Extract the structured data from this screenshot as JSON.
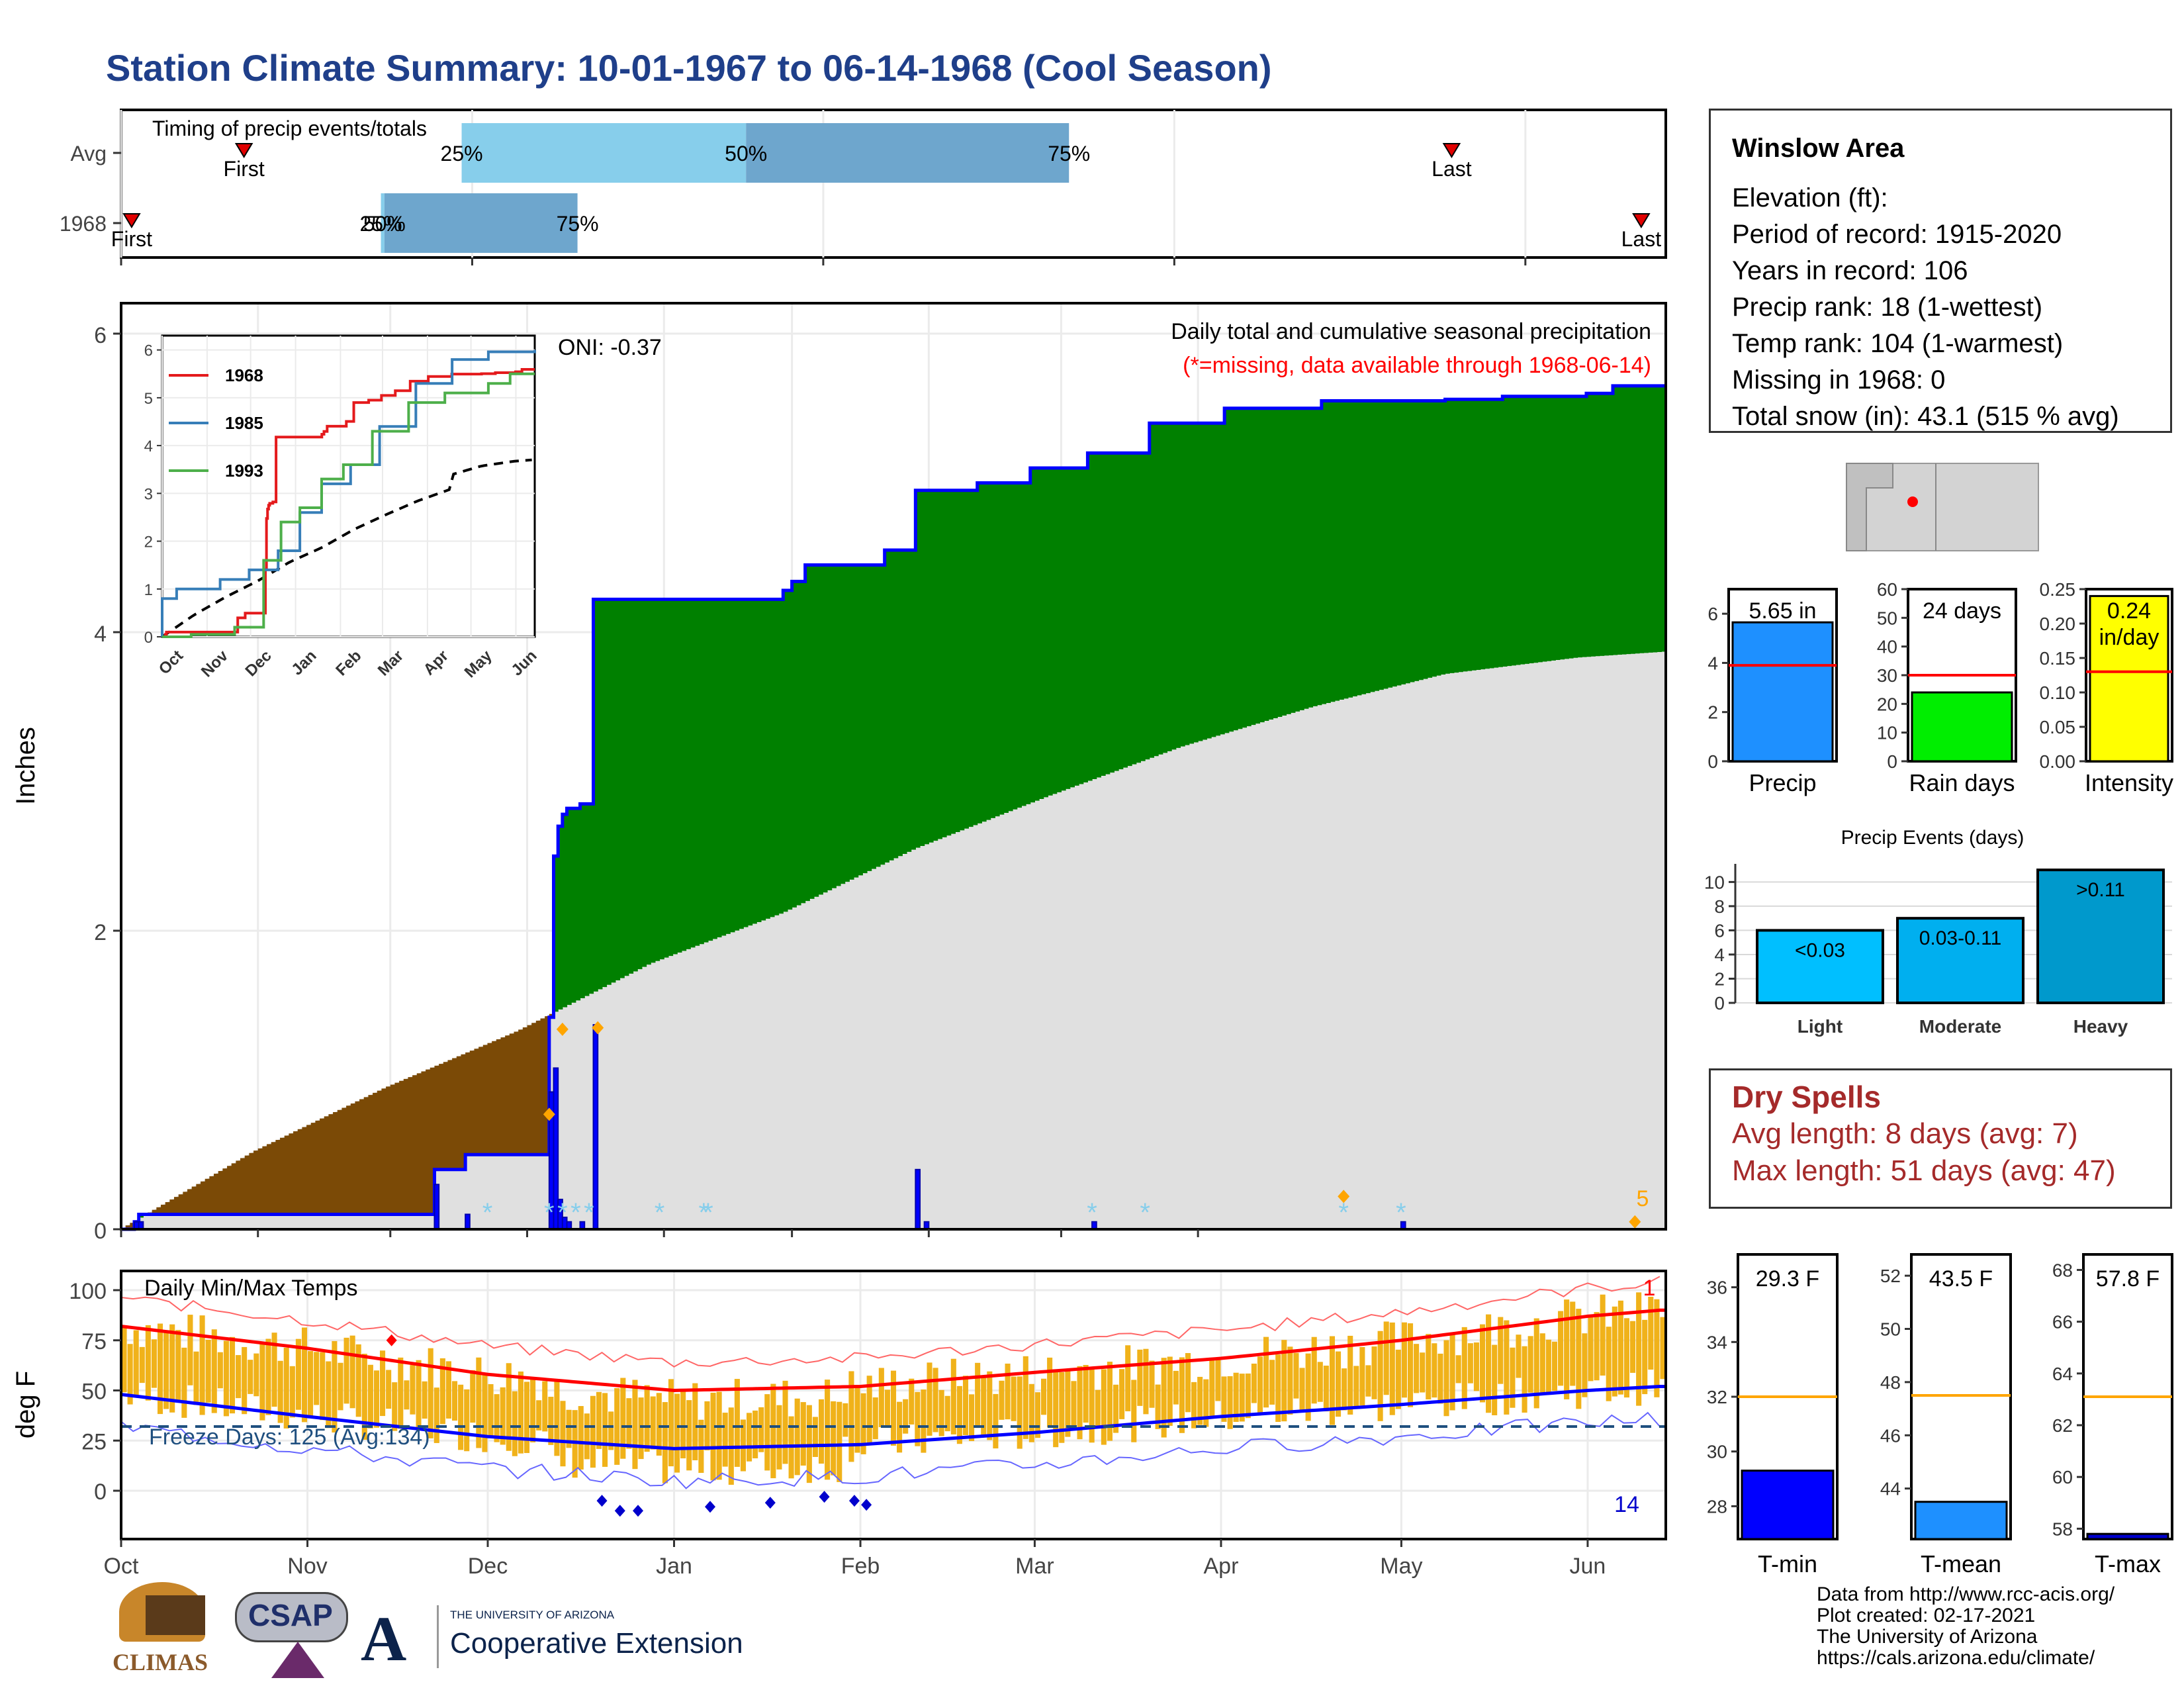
{
  "title": "Station Climate Summary: 10-01-1967 to 06-14-1968 (Cool Season)",
  "colors": {
    "title": "#1f3f8a",
    "green_fill": "#008000",
    "brown_fill": "#7b4a06",
    "gray_fill": "#e0e0e0",
    "blue_line": "#0000ff",
    "temp_bar": "#f0b21a",
    "max_line": "#ff0000",
    "min_line": "#0000ff",
    "dry_spells": "#a52a2a",
    "timing_light": "#87ceeb",
    "timing_dark": "#6ea6cd"
  },
  "timing_panel": {
    "title": "Timing of precip events/totals",
    "rows": [
      {
        "label": "Avg",
        "first": {
          "day": 35,
          "text": "First"
        },
        "p25": {
          "day": 97,
          "text": "25%"
        },
        "p50": {
          "day": 178,
          "text": "50%"
        },
        "p75": {
          "day": 270,
          "text": "75%"
        },
        "last": {
          "day": 379,
          "text": "Last"
        }
      },
      {
        "label": "1968",
        "first": {
          "day": 3,
          "text": "First"
        },
        "p25": {
          "day": 74,
          "text": "25%"
        },
        "p50": {
          "day": 75,
          "text": "50%"
        },
        "p75": {
          "day": 130,
          "text": "75%"
        },
        "last": {
          "day": 433,
          "text": "Last"
        }
      }
    ]
  },
  "main_panel": {
    "ylabel": "Inches",
    "yticks": [
      "0",
      "2",
      "4",
      "6"
    ],
    "oni": "ONI: -0.37",
    "caption1": "Daily total and cumulative seasonal precipitation",
    "caption2": "(*=missing, data available through 1968-06-14)",
    "corner_count": "5"
  },
  "inset": {
    "yticks": [
      "0",
      "1",
      "2",
      "3",
      "4",
      "5",
      "6"
    ],
    "xticks": [
      "Oct",
      "Nov",
      "Dec",
      "Jan",
      "Feb",
      "Mar",
      "Apr",
      "May",
      "Jun"
    ],
    "legend": [
      {
        "name": "1968",
        "color": "#e41a1c"
      },
      {
        "name": "1985",
        "color": "#377eb8"
      },
      {
        "name": "1993",
        "color": "#4daf4a"
      }
    ]
  },
  "temp_panel": {
    "title": "Daily Min/Max Temps",
    "ylabel": "deg F",
    "yticks": [
      "0",
      "25",
      "50",
      "75",
      "100"
    ],
    "freeze_text": "Freeze Days: 125 (Avg:134)",
    "count_top": "1",
    "count_bottom": "14",
    "xticks": [
      "Oct",
      "Nov",
      "Dec",
      "Jan",
      "Feb",
      "Mar",
      "Apr",
      "May",
      "Jun"
    ]
  },
  "station": {
    "name": "Winslow Area",
    "lines": [
      "Elevation (ft):",
      "Period of record: 1915-2020",
      "Years in record: 106",
      "Precip rank: 18 (1-wettest)",
      "Temp rank: 104 (1-warmest)",
      "Missing in 1968: 0",
      "Total snow (in): 43.1 (515 % avg)"
    ]
  },
  "summary_bars": [
    {
      "label": "Precip",
      "value_text": "5.65 in",
      "value": 5.65,
      "avg": 3.9,
      "max": 7,
      "ticks": [
        "0",
        "2",
        "4",
        "6"
      ],
      "color": "#1e90ff"
    },
    {
      "label": "Rain days",
      "value_text": "24 days",
      "value": 24,
      "avg": 30,
      "max": 60,
      "ticks": [
        "0",
        "10",
        "20",
        "30",
        "40",
        "50",
        "60"
      ],
      "color": "#00ee00"
    },
    {
      "label": "Intensity",
      "value_text": "0.24\nin/day",
      "value": 0.24,
      "avg": 0.13,
      "max": 0.25,
      "ticks": [
        "0.00",
        "0.05",
        "0.10",
        "0.15",
        "0.20",
        "0.25"
      ],
      "color": "#ffff00"
    }
  ],
  "events": {
    "title": "Precip Events (days)",
    "yticks": [
      "0",
      "2",
      "4",
      "6",
      "8",
      "10"
    ],
    "bars": [
      {
        "category": "Light",
        "range": "<0.03",
        "value": 6,
        "color": "#00bfff"
      },
      {
        "category": "Moderate",
        "range": "0.03-0.11",
        "value": 7,
        "color": "#00afef"
      },
      {
        "category": "Heavy",
        "range": ">0.11",
        "value": 11,
        "color": "#0099cc"
      }
    ]
  },
  "dry_spells": {
    "title": "Dry Spells",
    "avg_line": "Avg length: 8 days (avg: 7)",
    "max_line": "Max length: 51 days (avg: 47)"
  },
  "temp_bars": [
    {
      "label": "T-min",
      "value_text": "29.3 F",
      "value": 29.3,
      "avg": 32,
      "ymin": 26.8,
      "ymax": 37.2,
      "ticks": [
        "28",
        "30",
        "32",
        "34",
        "36"
      ],
      "color": "#0000ff"
    },
    {
      "label": "T-mean",
      "value_text": "43.5 F",
      "value": 43.5,
      "avg": 47.5,
      "ymin": 42.1,
      "ymax": 52.8,
      "ticks": [
        "44",
        "46",
        "48",
        "50",
        "52"
      ],
      "color": "#1e90ff"
    },
    {
      "label": "T-max",
      "value_text": "57.8 F",
      "value": 57.8,
      "avg": 63.1,
      "ymin": 57.6,
      "ymax": 68.6,
      "ticks": [
        "58",
        "60",
        "62",
        "64",
        "66",
        "68"
      ],
      "color": "#0000cd"
    }
  ],
  "footer": [
    "Data from http://www.rcc-acis.org/",
    "Plot created: 02-17-2021",
    "The University of Arizona",
    "https://cals.arizona.edu/climate/"
  ],
  "logos": {
    "climas": "CLIMAS",
    "csap": "CSAP",
    "ua_small": "THE UNIVERSITY OF ARIZONA",
    "ua_big": "Cooperative Extension"
  },
  "chart_data": {
    "type": "area",
    "cumulative_1968_steps": [
      [
        0,
        0
      ],
      [
        3,
        0.05
      ],
      [
        4,
        0.1
      ],
      [
        70,
        0.1
      ],
      [
        71,
        0.4
      ],
      [
        77,
        0.4
      ],
      [
        78,
        0.5
      ],
      [
        96,
        0.5
      ],
      [
        97,
        1.42
      ],
      [
        98,
        2.5
      ],
      [
        99,
        2.7
      ],
      [
        100,
        2.78
      ],
      [
        101,
        2.82
      ],
      [
        104,
        2.85
      ],
      [
        107,
        4.22
      ],
      [
        148,
        4.22
      ],
      [
        150,
        4.28
      ],
      [
        152,
        4.34
      ],
      [
        155,
        4.45
      ],
      [
        170,
        4.45
      ],
      [
        173,
        4.55
      ],
      [
        180,
        4.95
      ],
      [
        194,
        5.0
      ],
      [
        206,
        5.1
      ],
      [
        219,
        5.2
      ],
      [
        233,
        5.4
      ],
      [
        250,
        5.5
      ],
      [
        272,
        5.55
      ],
      [
        300,
        5.56
      ],
      [
        313,
        5.58
      ],
      [
        332,
        5.6
      ],
      [
        338,
        5.65
      ],
      [
        350,
        5.65
      ]
    ],
    "avg_cumulative": [
      [
        0,
        0
      ],
      [
        30,
        0.52
      ],
      [
        60,
        0.95
      ],
      [
        90,
        1.33
      ],
      [
        120,
        1.78
      ],
      [
        150,
        2.12
      ],
      [
        180,
        2.55
      ],
      [
        210,
        2.9
      ],
      [
        240,
        3.23
      ],
      [
        270,
        3.5
      ],
      [
        300,
        3.72
      ],
      [
        330,
        3.83
      ],
      [
        350,
        3.87
      ]
    ],
    "daily_precip_days": [
      3,
      4,
      71,
      78,
      97,
      98,
      99,
      100,
      101,
      104,
      107,
      180,
      182,
      220,
      290
    ],
    "temps_avg_max": [
      [
        0,
        82
      ],
      [
        31,
        71
      ],
      [
        61,
        58
      ],
      [
        92,
        50
      ],
      [
        123,
        52
      ],
      [
        152,
        59
      ],
      [
        183,
        66
      ],
      [
        213,
        75
      ],
      [
        244,
        87
      ],
      [
        256,
        90
      ]
    ],
    "temps_avg_min": [
      [
        0,
        48
      ],
      [
        31,
        37
      ],
      [
        61,
        27
      ],
      [
        92,
        21
      ],
      [
        123,
        23
      ],
      [
        152,
        29
      ],
      [
        183,
        37
      ],
      [
        213,
        43
      ],
      [
        244,
        50
      ],
      [
        256,
        52
      ]
    ]
  }
}
